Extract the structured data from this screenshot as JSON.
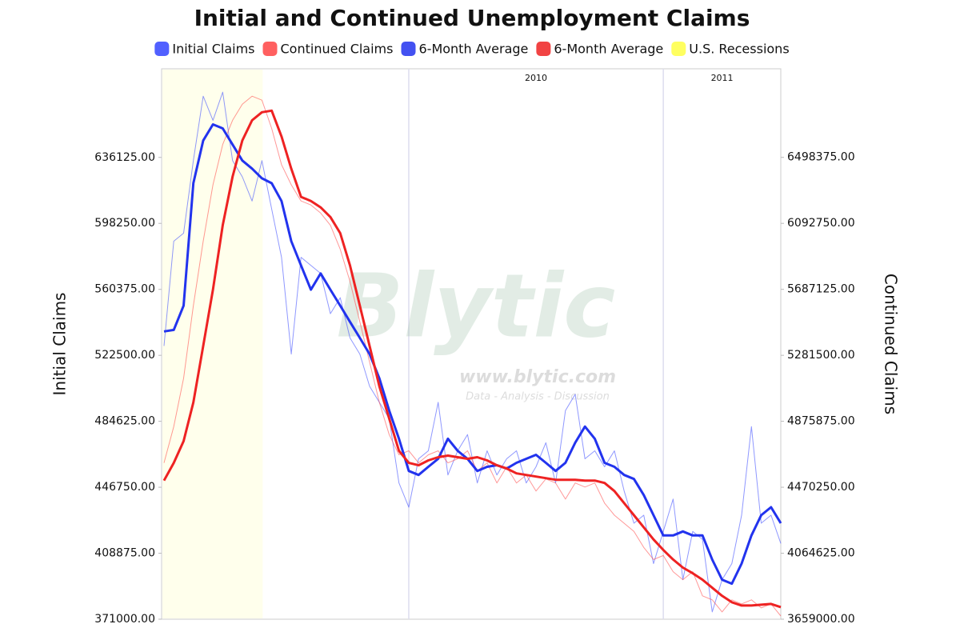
{
  "chart_data": {
    "type": "line",
    "title": "Initial and Continued Unemployment Claims",
    "ylabel": "Initial Claims",
    "y2label": "Continued Claims",
    "watermark": {
      "brand": "Blytic",
      "url": "www.blytic.com",
      "tagline": "Data - Analysis - Discussion"
    },
    "categories": [
      null,
      null,
      null,
      null,
      null,
      null,
      null,
      null,
      null,
      null,
      null,
      null,
      null,
      null,
      null,
      null,
      null,
      null,
      null,
      null,
      null,
      null,
      null,
      null,
      null,
      "2010",
      null,
      null,
      null,
      null,
      null,
      null,
      null,
      null,
      null,
      null,
      null,
      null,
      null,
      null,
      null,
      null,
      null,
      null,
      null,
      null,
      null,
      null,
      null,
      null,
      null,
      "2011",
      null,
      null,
      null,
      null,
      null,
      null,
      null,
      null,
      null,
      null,
      null,
      null
    ],
    "recession": {
      "name": "U.S. Recessions",
      "color": "#ffff44",
      "span": [
        0,
        10
      ]
    },
    "series": [
      {
        "name": "Initial Claims",
        "color": "#3344ff",
        "line_width": 1,
        "axis": "y",
        "values": [
          527900,
          588000,
          592600,
          634300,
          671300,
          657400,
          673600,
          634300,
          625000,
          611100,
          634300,
          606500,
          578800,
          523200,
          578800,
          574100,
          569500,
          546400,
          555600,
          532500,
          523200,
          504700,
          495500,
          486200,
          449200,
          435300,
          463100,
          467700,
          495500,
          453800,
          467700,
          477000,
          449200,
          467700,
          453800,
          463100,
          467700,
          449200,
          458500,
          472300,
          449200,
          490800,
          500100,
          463100,
          467700,
          458500,
          467700,
          444600,
          426100,
          430700,
          402900,
          421400,
          440000,
          393700,
          421400,
          416800,
          375200,
          393700,
          402900,
          430700,
          481600,
          426100,
          430700,
          414500
        ]
      },
      {
        "name": "Continued Claims",
        "color": "#ff4444",
        "line_width": 1,
        "axis": "y2",
        "values": [
          4620300,
          4843200,
          5140500,
          5586500,
          5982900,
          6329700,
          6577500,
          6726100,
          6825200,
          6874800,
          6850000,
          6676600,
          6453600,
          6329700,
          6230600,
          6205900,
          6156300,
          6081000,
          5933300,
          5735100,
          5487400,
          5239600,
          4991900,
          4793700,
          4669800,
          4694600,
          4620300,
          4669800,
          4694600,
          4620300,
          4645000,
          4694600,
          4570700,
          4620300,
          4496400,
          4595500,
          4496400,
          4546000,
          4446800,
          4521200,
          4496400,
          4397300,
          4496400,
          4471600,
          4496400,
          4372500,
          4298200,
          4248700,
          4199100,
          4100000,
          4025700,
          4050400,
          3951300,
          3901800,
          3951300,
          3802700,
          3777900,
          3703600,
          3777900,
          3753100,
          3777900,
          3728400,
          3753100,
          3678800
        ]
      },
      {
        "name": "6-Month Average",
        "color": "#2233ee",
        "line_width": 3,
        "axis": "y",
        "values": [
          536200,
          537100,
          551000,
          621300,
          645800,
          655100,
          652800,
          643500,
          634300,
          629700,
          624100,
          621300,
          611100,
          588000,
          574100,
          560200,
          569500,
          560200,
          551000,
          541700,
          532500,
          523200,
          509300,
          490800,
          474600,
          456100,
          453800,
          458500,
          463100,
          474600,
          467700,
          463100,
          456100,
          458500,
          459400,
          457500,
          460800,
          463100,
          465400,
          460800,
          456100,
          460800,
          472300,
          481600,
          474600,
          460800,
          458500,
          453800,
          451500,
          442300,
          430700,
          419100,
          419100,
          421400,
          419100,
          419100,
          405200,
          393700,
          391400,
          402900,
          419100,
          430700,
          435300,
          426100
        ]
      },
      {
        "name": "6-Month Average",
        "color": "#ee2222",
        "line_width": 3,
        "axis": "y2",
        "values": [
          4511300,
          4620300,
          4754100,
          4991900,
          5338700,
          5685600,
          6081000,
          6379300,
          6602300,
          6726100,
          6775700,
          6785600,
          6627000,
          6428800,
          6255400,
          6230600,
          6191000,
          6131500,
          6032400,
          5834200,
          5586500,
          5338700,
          5091000,
          4892800,
          4694600,
          4620300,
          4605400,
          4635100,
          4655000,
          4664900,
          4655000,
          4645000,
          4655000,
          4635100,
          4605400,
          4585600,
          4555900,
          4546000,
          4536000,
          4526100,
          4516200,
          4516200,
          4516200,
          4511300,
          4511300,
          4496400,
          4446800,
          4372500,
          4298200,
          4223900,
          4149500,
          4085100,
          4025700,
          3976100,
          3941400,
          3901800,
          3852200,
          3802700,
          3763100,
          3743200,
          3743200,
          3748200,
          3753100,
          3733300
        ]
      }
    ],
    "ylim": [
      371000,
      687000
    ],
    "yticks": [
      {
        "value": 371000,
        "label": "371000.00"
      },
      {
        "value": 408875,
        "label": "408875.00"
      },
      {
        "value": 446750,
        "label": "446750.00"
      },
      {
        "value": 484625,
        "label": "484625.00"
      },
      {
        "value": 522500,
        "label": "522500.00"
      },
      {
        "value": 560375,
        "label": "560375.00"
      },
      {
        "value": 598250,
        "label": "598250.00"
      },
      {
        "value": 636125,
        "label": "636125.00"
      }
    ],
    "y2lim": [
      3659000,
      7043000
    ],
    "y2ticks": [
      {
        "value": 3659000,
        "label": "3659000.00"
      },
      {
        "value": 4064625,
        "label": "4064625.00"
      },
      {
        "value": 4470250,
        "label": "4470250.00"
      },
      {
        "value": 4875875,
        "label": "4875875.00"
      },
      {
        "value": 5281500,
        "label": "5281500.00"
      },
      {
        "value": 5687125,
        "label": "5687125.00"
      },
      {
        "value": 6092750,
        "label": "6092750.00"
      },
      {
        "value": 6498375,
        "label": "6498375.00"
      }
    ],
    "grid": false
  }
}
